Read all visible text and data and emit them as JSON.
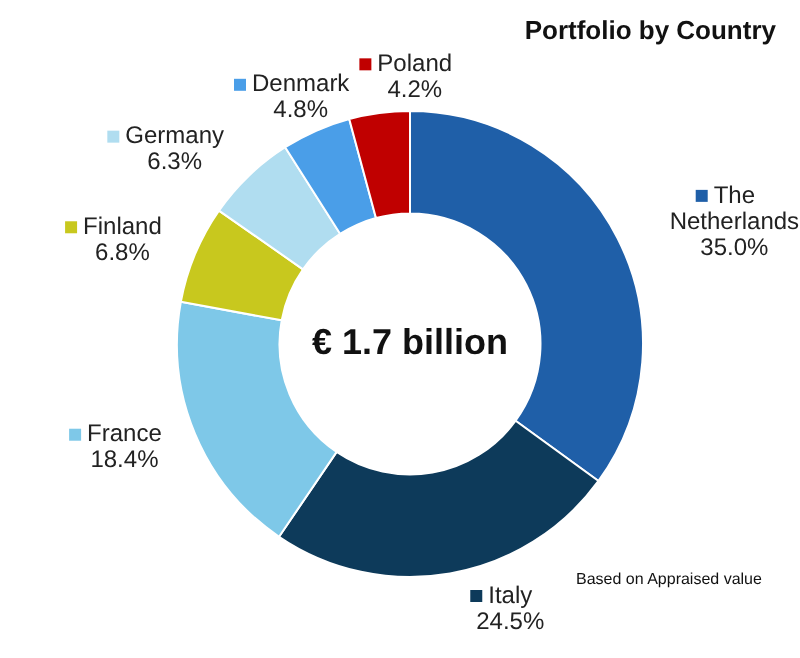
{
  "chart_data": {
    "type": "donut",
    "title": "Portfolio by Country",
    "categories": [
      "The Netherlands",
      "Italy",
      "France",
      "Finland",
      "Germany",
      "Denmark",
      "Poland"
    ],
    "values": [
      35.0,
      24.5,
      18.4,
      6.8,
      6.3,
      4.8,
      4.2
    ],
    "value_labels": [
      "35.0%",
      "24.5%",
      "18.4%",
      "6.8%",
      "6.3%",
      "4.8%",
      "4.2%"
    ],
    "colors": [
      "#1f5fa8",
      "#0d3a5a",
      "#7ec8e8",
      "#c8c81e",
      "#b0ddf0",
      "#4a9ee8",
      "#c00000"
    ],
    "annotations": [
      "€ 1.7 billion",
      "Based on Appraised value"
    ],
    "legend": "left"
  }
}
